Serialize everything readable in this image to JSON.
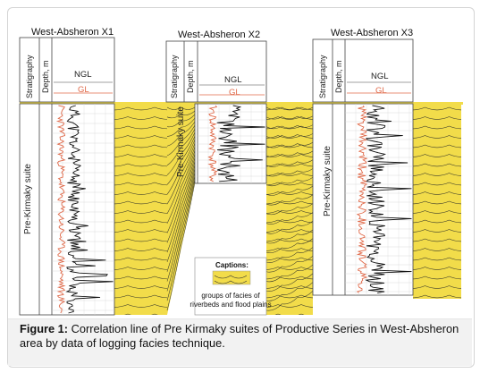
{
  "wells": [
    {
      "name": "West-Absheron X1",
      "stratigraphy_label": "Stratigraphy",
      "depth_label": "Depth, m",
      "log1": "NGL",
      "log2": "GL",
      "suite": "Pre-Kirmaky suite"
    },
    {
      "name": "West-Absheron X2",
      "stratigraphy_label": "Stratigraphy",
      "depth_label": "Depth, m",
      "log1": "NGL",
      "log2": "GL",
      "suite": "Pre-Kirmaky suite"
    },
    {
      "name": "West-Absheron X3",
      "stratigraphy_label": "Stratigraphy",
      "depth_label": "Depth, m",
      "log1": "NGL",
      "log2": "GL",
      "suite": "Pre-Kirmaky suite"
    }
  ],
  "legend": {
    "title": "Captions:",
    "description": "groups of facies of riverbeds and flood plains"
  },
  "figure": {
    "label": "Figure 1:",
    "caption": "Correlation line of Pre Kirmaky suites of Productive Series in West-Absheron area by data of logging facies technique."
  },
  "colors": {
    "facies_fill": "#f2dc4a",
    "ngl_curve": "#111111",
    "gl_curve": "#e06a4a",
    "header_band": "#f2dc4a"
  }
}
